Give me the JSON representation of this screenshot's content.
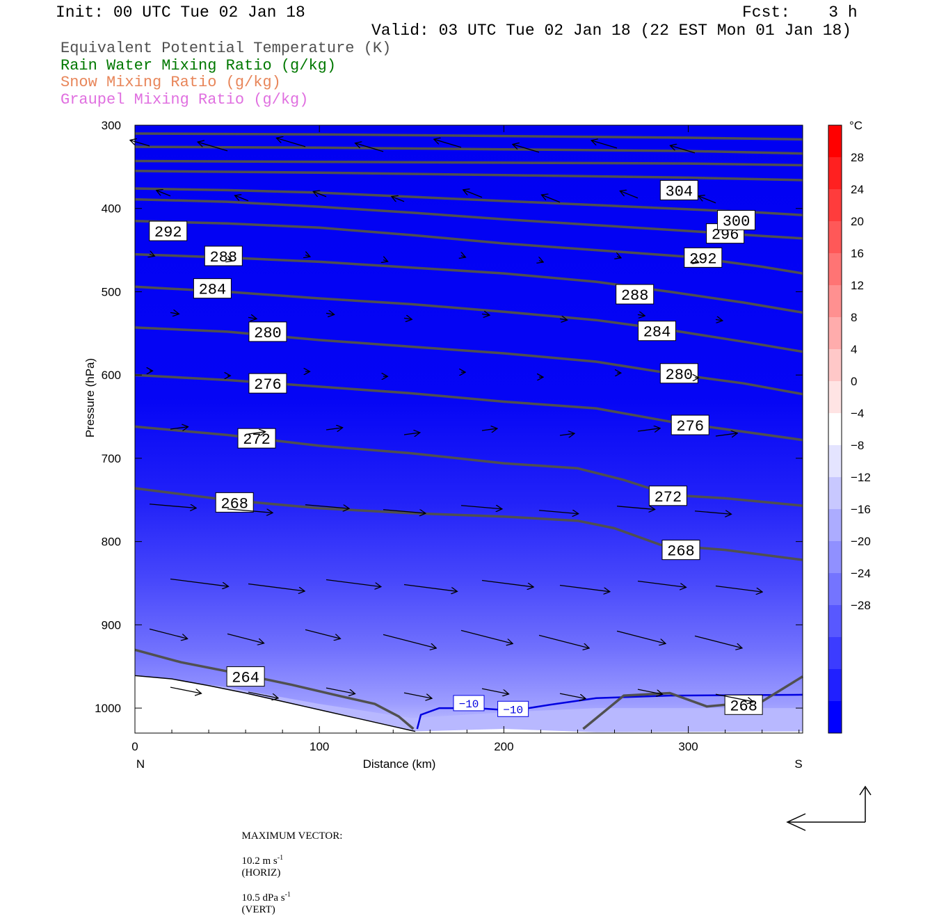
{
  "header": {
    "init": "Init: 00 UTC Tue 02 Jan 18",
    "fcst": "Fcst:    3 h",
    "valid": "Valid: 03 UTC Tue 02 Jan 18 (22 EST Mon 01 Jan 18)"
  },
  "legend": [
    {
      "label": "Equivalent Potential Temperature (K)",
      "color": "#505050"
    },
    {
      "label": "Rain Water Mixing Ratio (g/kg)",
      "color": "#007800"
    },
    {
      "label": "Snow Mixing Ratio (g/kg)",
      "color": "#e8865a"
    },
    {
      "label": "Graupel Mixing Ratio (g/kg)",
      "color": "#e070e0"
    }
  ],
  "footer": {
    "max_vector_label": "MAXIMUM VECTOR:",
    "horiz_value": "10.2 m s",
    "horiz_exp": "-1",
    "horiz_unit": "(HORIZ)",
    "vert_value": "10.5 dPa s",
    "vert_exp": "-1",
    "vert_unit": "(VERT)"
  },
  "chart_data": {
    "type": "cross-section",
    "xlabel": "Distance (km)",
    "ylabel": "Pressure (hPa)",
    "x_ticks": [
      0,
      100,
      200,
      300
    ],
    "x_end_labels": {
      "left": "N",
      "right": "S"
    },
    "xlim": [
      0,
      362
    ],
    "y_ticks": [
      300,
      400,
      500,
      600,
      700,
      800,
      900,
      1000
    ],
    "ylim": [
      1030,
      300
    ],
    "colorbar": {
      "unit": "°C",
      "labels": [
        "28",
        "24",
        "20",
        "16",
        "12",
        "8",
        "4",
        "0",
        "−4",
        "−8",
        "−12",
        "−16",
        "−20",
        "−24",
        "−28"
      ],
      "colors": [
        "#ff0000",
        "#ff2020",
        "#ff3c3c",
        "#ff5858",
        "#ff7474",
        "#ff9090",
        "#ffacac",
        "#ffc8c8",
        "#ffe4e4",
        "#ffffff",
        "#e4e4ff",
        "#c8c8ff",
        "#acacff",
        "#9090ff",
        "#7474ff",
        "#5858ff",
        "#3c3cff",
        "#2020ff",
        "#0000ff"
      ]
    },
    "temperature_contour": {
      "level": "−10",
      "labels": [
        "−10",
        "−10"
      ]
    },
    "theta_e_contours": [
      {
        "level": 264,
        "label": "264",
        "points": [
          [
            0,
            930
          ],
          [
            25,
            945
          ],
          [
            55,
            958
          ],
          [
            85,
            972
          ],
          [
            110,
            985
          ],
          [
            130,
            995
          ],
          [
            143,
            1010
          ],
          [
            151,
            1025
          ]
        ]
      },
      {
        "level": 268,
        "label": "268",
        "points": [
          [
            0,
            736
          ],
          [
            50,
            750
          ],
          [
            100,
            760
          ],
          [
            150,
            766
          ],
          [
            200,
            770
          ],
          [
            240,
            775
          ],
          [
            260,
            784
          ],
          [
            285,
            804
          ],
          [
            320,
            810
          ],
          [
            362,
            822
          ]
        ],
        "label_at": [
          296,
          810
        ]
      },
      {
        "level": 268,
        "label": "268",
        "points": [
          [
            243,
            1025
          ],
          [
            265,
            985
          ],
          [
            290,
            982
          ],
          [
            310,
            998
          ],
          [
            340,
            992
          ],
          [
            362,
            962
          ]
        ],
        "label_at": [
          330,
          996
        ]
      },
      {
        "level": 272,
        "label": "272",
        "points": [
          [
            0,
            662
          ],
          [
            50,
            672
          ],
          [
            100,
            685
          ],
          [
            150,
            694
          ],
          [
            200,
            706
          ],
          [
            240,
            712
          ],
          [
            265,
            726
          ],
          [
            290,
            744
          ],
          [
            320,
            748
          ],
          [
            362,
            757
          ]
        ],
        "label_at": [
          289,
          745
        ]
      },
      {
        "level": 276,
        "label": "276",
        "points": [
          [
            0,
            600
          ],
          [
            50,
            606
          ],
          [
            100,
            614
          ],
          [
            150,
            622
          ],
          [
            200,
            632
          ],
          [
            250,
            640
          ],
          [
            290,
            656
          ],
          [
            320,
            665
          ],
          [
            362,
            678
          ]
        ],
        "label_at": [
          301,
          660
        ]
      },
      {
        "level": 280,
        "label": "280",
        "points": [
          [
            0,
            543
          ],
          [
            50,
            548
          ],
          [
            100,
            558
          ],
          [
            150,
            566
          ],
          [
            200,
            574
          ],
          [
            250,
            584
          ],
          [
            290,
            598
          ],
          [
            330,
            610
          ],
          [
            362,
            623
          ]
        ],
        "label_at": [
          295,
          598
        ]
      },
      {
        "level": 284,
        "label": "284",
        "points": [
          [
            0,
            494
          ],
          [
            50,
            500
          ],
          [
            100,
            508
          ],
          [
            150,
            515
          ],
          [
            200,
            524
          ],
          [
            250,
            534
          ],
          [
            290,
            546
          ],
          [
            330,
            560
          ],
          [
            362,
            572
          ]
        ],
        "label_at": [
          283,
          547
        ]
      },
      {
        "level": 288,
        "label": "288",
        "points": [
          [
            0,
            455
          ],
          [
            50,
            459
          ],
          [
            100,
            464
          ],
          [
            150,
            471
          ],
          [
            200,
            478
          ],
          [
            250,
            488
          ],
          [
            290,
            500
          ],
          [
            330,
            513
          ],
          [
            362,
            525
          ]
        ],
        "label_at": [
          271,
          503
        ]
      },
      {
        "level": 292,
        "label": "292",
        "points": [
          [
            0,
            415
          ],
          [
            50,
            418
          ],
          [
            100,
            423
          ],
          [
            150,
            432
          ],
          [
            200,
            442
          ],
          [
            250,
            450
          ],
          [
            300,
            458
          ],
          [
            340,
            470
          ],
          [
            362,
            478
          ]
        ],
        "label_at": [
          308,
          459
        ]
      },
      {
        "level": 296,
        "label": "296",
        "points": [
          [
            0,
            389
          ],
          [
            50,
            392
          ],
          [
            100,
            398
          ],
          [
            150,
            405
          ],
          [
            200,
            413
          ],
          [
            250,
            420
          ],
          [
            300,
            427
          ],
          [
            340,
            433
          ],
          [
            362,
            436
          ]
        ],
        "label_at": [
          320,
          430
        ]
      },
      {
        "level": 300,
        "label": "300",
        "points": [
          [
            0,
            376
          ],
          [
            50,
            378
          ],
          [
            100,
            381
          ],
          [
            150,
            386
          ],
          [
            200,
            391
          ],
          [
            250,
            396
          ],
          [
            300,
            401
          ],
          [
            340,
            405
          ],
          [
            362,
            408
          ]
        ],
        "label_at": [
          326,
          414
        ]
      },
      {
        "level": 304,
        "label": "304",
        "points": [
          [
            0,
            355
          ],
          [
            100,
            357
          ],
          [
            200,
            360
          ],
          [
            300,
            363
          ],
          [
            362,
            366
          ]
        ],
        "label_at": [
          295,
          378
        ]
      },
      {
        "level": 308,
        "label": "",
        "points": [
          [
            0,
            343
          ],
          [
            100,
            344
          ],
          [
            200,
            345
          ],
          [
            300,
            346
          ],
          [
            362,
            348
          ]
        ]
      },
      {
        "level": 312,
        "label": "",
        "points": [
          [
            0,
            326
          ],
          [
            100,
            327
          ],
          [
            200,
            329
          ],
          [
            300,
            331
          ],
          [
            362,
            334
          ]
        ]
      },
      {
        "level": 316,
        "label": "",
        "points": [
          [
            0,
            310
          ],
          [
            100,
            311
          ],
          [
            200,
            313
          ],
          [
            300,
            315
          ],
          [
            362,
            317
          ]
        ]
      }
    ],
    "free_labels": [
      {
        "label": "292",
        "at": [
          18,
          427
        ]
      },
      {
        "label": "288",
        "at": [
          48,
          457
        ]
      },
      {
        "label": "284",
        "at": [
          42,
          496
        ]
      },
      {
        "label": "280",
        "at": [
          72,
          548
        ]
      },
      {
        "label": "276",
        "at": [
          72,
          610
        ]
      },
      {
        "label": "272",
        "at": [
          66,
          676
        ]
      },
      {
        "label": "268",
        "at": [
          54,
          753
        ]
      },
      {
        "label": "264",
        "at": [
          60,
          962
        ]
      }
    ]
  }
}
